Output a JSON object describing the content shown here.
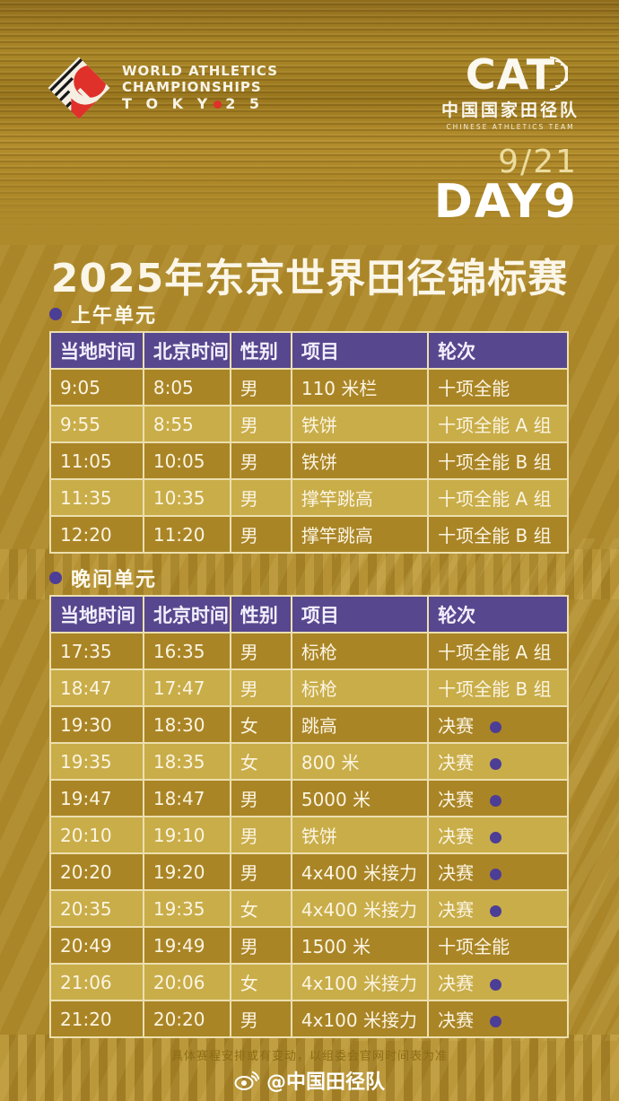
{
  "header": {
    "wa_logo": {
      "line1": "WORLD ATHLETICS",
      "line2": "CHAMPIONSHIPS",
      "line3_left": "T O K Y",
      "line3_right": "2 5"
    },
    "cat_logo": {
      "acronym": "CAT",
      "name_cn": "中国国家田径队",
      "name_en": "CHINESE ATHLETICS TEAM"
    },
    "date": "9/21",
    "day": "DAY9"
  },
  "title": "2025年东京世界田径锦标赛",
  "sessions": [
    {
      "label": "上午单元",
      "columns": [
        "当地时间",
        "北京时间",
        "性别",
        "项目",
        "轮次"
      ],
      "rows": [
        {
          "local": "9:05",
          "beijing": "8:05",
          "gender": "男",
          "event": "110 米栏",
          "round": "十项全能",
          "final_dot": false
        },
        {
          "local": "9:55",
          "beijing": "8:55",
          "gender": "男",
          "event": "铁饼",
          "round": "十项全能 A 组",
          "final_dot": false
        },
        {
          "local": "11:05",
          "beijing": "10:05",
          "gender": "男",
          "event": "铁饼",
          "round": "十项全能 B 组",
          "final_dot": false
        },
        {
          "local": "11:35",
          "beijing": "10:35",
          "gender": "男",
          "event": "撑竿跳高",
          "round": "十项全能 A 组",
          "final_dot": false
        },
        {
          "local": "12:20",
          "beijing": "11:20",
          "gender": "男",
          "event": "撑竿跳高",
          "round": "十项全能 B 组",
          "final_dot": false
        }
      ]
    },
    {
      "label": "晚间单元",
      "columns": [
        "当地时间",
        "北京时间",
        "性别",
        "项目",
        "轮次"
      ],
      "rows": [
        {
          "local": "17:35",
          "beijing": "16:35",
          "gender": "男",
          "event": "标枪",
          "round": "十项全能 A 组",
          "final_dot": false
        },
        {
          "local": "18:47",
          "beijing": "17:47",
          "gender": "男",
          "event": "标枪",
          "round": "十项全能 B 组",
          "final_dot": false
        },
        {
          "local": "19:30",
          "beijing": "18:30",
          "gender": "女",
          "event": "跳高",
          "round": "决赛",
          "final_dot": true
        },
        {
          "local": "19:35",
          "beijing": "18:35",
          "gender": "女",
          "event": "800 米",
          "round": "决赛",
          "final_dot": true
        },
        {
          "local": "19:47",
          "beijing": "18:47",
          "gender": "男",
          "event": "5000 米",
          "round": "决赛",
          "final_dot": true
        },
        {
          "local": "20:10",
          "beijing": "19:10",
          "gender": "男",
          "event": "铁饼",
          "round": "决赛",
          "final_dot": true
        },
        {
          "local": "20:20",
          "beijing": "19:20",
          "gender": "男",
          "event": "4x400 米接力",
          "round": "决赛",
          "final_dot": true
        },
        {
          "local": "20:35",
          "beijing": "19:35",
          "gender": "女",
          "event": "4x400 米接力",
          "round": "决赛",
          "final_dot": true
        },
        {
          "local": "20:49",
          "beijing": "19:49",
          "gender": "男",
          "event": "1500 米",
          "round": "十项全能",
          "final_dot": false
        },
        {
          "local": "21:06",
          "beijing": "20:06",
          "gender": "女",
          "event": "4x100 米接力",
          "round": "决赛",
          "final_dot": true
        },
        {
          "local": "21:20",
          "beijing": "20:20",
          "gender": "男",
          "event": "4x100 米接力",
          "round": "决赛",
          "final_dot": true
        }
      ]
    }
  ],
  "footer": {
    "disclaimer": "具体赛程安排或有变动，以组委会官网时间表为准",
    "weibo_handle": "@中国田径队"
  },
  "colors": {
    "header_purple": "#57478E",
    "row_dark": "#AA8526",
    "row_light": "#C9AD49",
    "dot_purple": "#4C3D96",
    "accent_red": "#E0302A",
    "page_gold": "#AE8A2B"
  }
}
